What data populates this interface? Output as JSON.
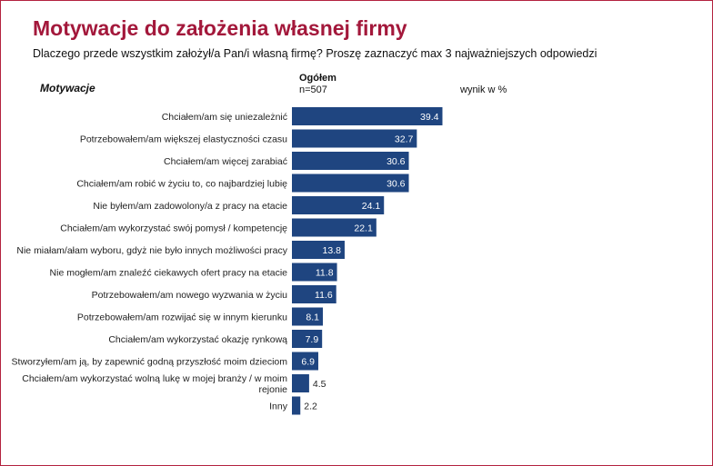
{
  "title": "Motywacje do założenia własnej firmy",
  "subtitle": "Dlaczego przede wszystkim założył/a Pan/i własną firmę? Proszę zaznaczyć max 3 najważniejszych odpowiedzi",
  "column_header": "Motywacje",
  "group": {
    "name": "Ogółem",
    "n": "n=507"
  },
  "unit_label": "wynik w %",
  "colors": {
    "bar": "#1f4580",
    "title": "#a3183b",
    "border": "#b3223f"
  },
  "chart_data": {
    "type": "bar",
    "orientation": "horizontal",
    "title": "Motywacje do założenia własnej firmy",
    "ylabel": "Motywacje",
    "xlabel": "wynik w %",
    "xlim": [
      0,
      50
    ],
    "grid": false,
    "categories": [
      [
        "Chciałem/am się uniezależnić"
      ],
      [
        "Potrzebowałem/am większej elastyczności czasu"
      ],
      [
        "Chciałem/am więcej zarabiać"
      ],
      [
        "Chciałem/am robić w życiu to, co najbardziej lubię"
      ],
      [
        "Nie byłem/am zadowolony/a z pracy na etacie"
      ],
      [
        "Chciałem/am wykorzystać swój pomysł / kompetencję"
      ],
      [
        "Nie miałam/ałam wyboru, gdyż nie było innych możliwości pracy"
      ],
      [
        "Nie mogłem/am znaleźć ciekawych ofert pracy na etacie"
      ],
      [
        "Potrzebowałem/am nowego wyzwania w życiu"
      ],
      [
        "Potrzebowałem/am rozwijać się w innym kierunku"
      ],
      [
        "Chciałem/am wykorzystać okazję rynkową"
      ],
      [
        "Stworzyłem/am ją, by zapewnić godną przyszłość moim dzieciom"
      ],
      [
        "Chciałem/am wykorzystać wolną lukę w mojej branży / w moim",
        "rejonie"
      ],
      [
        "Inny"
      ]
    ],
    "values": [
      39.4,
      32.7,
      30.6,
      30.6,
      24.1,
      22.1,
      13.8,
      11.8,
      11.6,
      8.1,
      7.9,
      6.9,
      4.5,
      2.2
    ]
  }
}
